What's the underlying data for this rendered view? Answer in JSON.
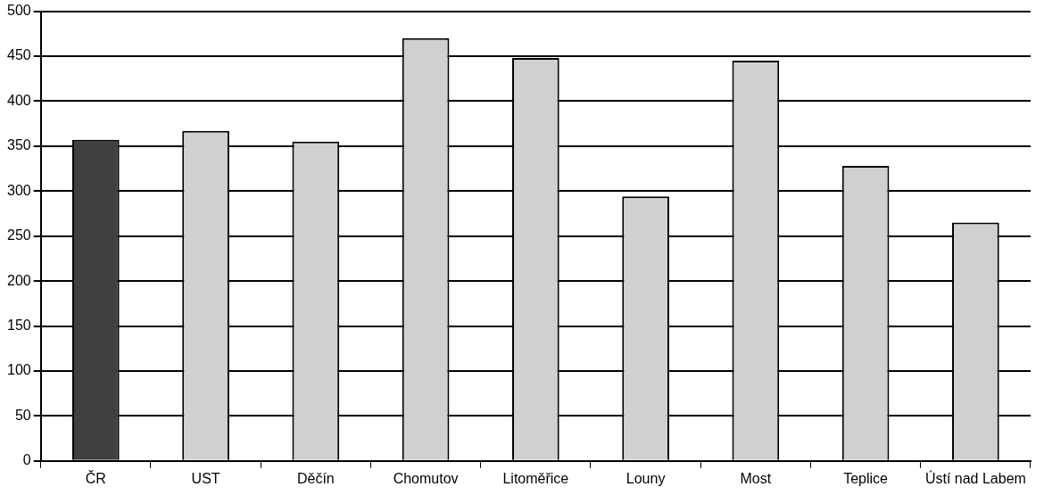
{
  "chart_data": {
    "type": "bar",
    "categories": [
      "ČR",
      "UST",
      "Děčín",
      "Chomutov",
      "Litoměřice",
      "Louny",
      "Most",
      "Teplice",
      "Ústí nad Labem"
    ],
    "values": [
      357,
      367,
      355,
      470,
      448,
      294,
      445,
      328,
      265
    ],
    "colors": [
      "#404040",
      "#d0d0d0",
      "#d0d0d0",
      "#d0d0d0",
      "#d0d0d0",
      "#d0d0d0",
      "#d0d0d0",
      "#d0d0d0",
      "#d0d0d0"
    ],
    "ylim": [
      0,
      500
    ],
    "yticks": [
      0,
      50,
      100,
      150,
      200,
      250,
      300,
      350,
      400,
      450,
      500
    ],
    "grid": "y"
  }
}
